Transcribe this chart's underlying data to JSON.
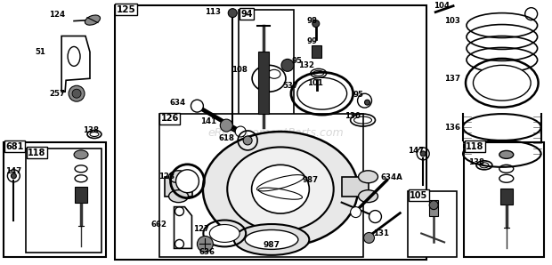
{
  "bg_color": "#ffffff",
  "fig_width": 6.2,
  "fig_height": 2.98,
  "watermark": "eReplacementParts.com"
}
